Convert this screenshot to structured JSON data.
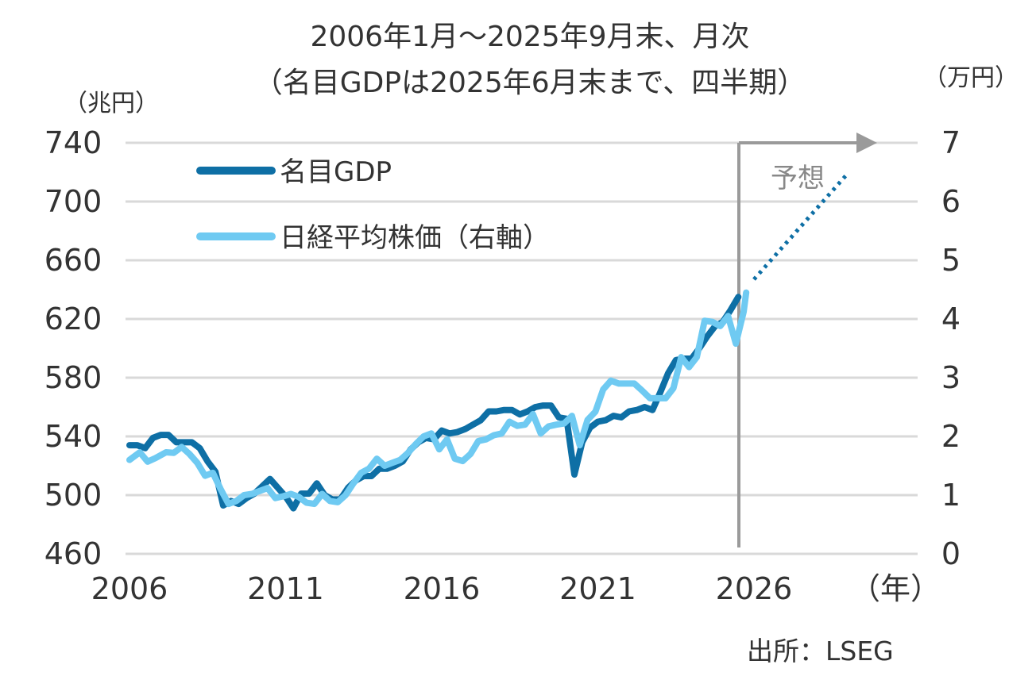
{
  "chart_data": {
    "type": "line",
    "title": "2006年1月～2025年9月末、月次",
    "subtitle": "（名目GDPは2025年6月末まで、四半期）",
    "y_left_label": "（兆円）",
    "y_right_label": "（万円）",
    "x_unit_label": "（年）",
    "x_ticks": [
      "2006",
      "2011",
      "2016",
      "2021",
      "2026"
    ],
    "x_range": [
      2006,
      2030
    ],
    "y_left_ticks": [
      "740",
      "700",
      "660",
      "620",
      "580",
      "540",
      "500",
      "460"
    ],
    "y_left_range": [
      460,
      740
    ],
    "y_right_ticks": [
      "7",
      "6",
      "5",
      "4",
      "3",
      "2",
      "1",
      "0"
    ],
    "y_right_range": [
      0,
      7
    ],
    "grid": true,
    "forecast_label": "予想",
    "forecast_start": 2026,
    "source": "出所：LSEG",
    "series": [
      {
        "name": "名目GDP",
        "axis": "left",
        "color": "#0e6fa5",
        "points": [
          [
            2006.0,
            534
          ],
          [
            2006.25,
            534
          ],
          [
            2006.5,
            532
          ],
          [
            2006.75,
            539
          ],
          [
            2007.0,
            541
          ],
          [
            2007.25,
            541
          ],
          [
            2007.5,
            536
          ],
          [
            2007.75,
            536
          ],
          [
            2008.0,
            536
          ],
          [
            2008.25,
            532
          ],
          [
            2008.5,
            523
          ],
          [
            2008.75,
            516
          ],
          [
            2009.0,
            493
          ],
          [
            2009.25,
            496
          ],
          [
            2009.5,
            494
          ],
          [
            2009.75,
            498
          ],
          [
            2010.0,
            501
          ],
          [
            2010.25,
            506
          ],
          [
            2010.5,
            511
          ],
          [
            2010.75,
            505
          ],
          [
            2011.0,
            499
          ],
          [
            2011.25,
            491
          ],
          [
            2011.5,
            501
          ],
          [
            2011.75,
            501
          ],
          [
            2012.0,
            508
          ],
          [
            2012.25,
            500
          ],
          [
            2012.5,
            497
          ],
          [
            2012.75,
            497
          ],
          [
            2013.0,
            505
          ],
          [
            2013.25,
            510
          ],
          [
            2013.5,
            513
          ],
          [
            2013.75,
            513
          ],
          [
            2014.0,
            518
          ],
          [
            2014.25,
            518
          ],
          [
            2014.5,
            520
          ],
          [
            2014.75,
            523
          ],
          [
            2015.0,
            531
          ],
          [
            2015.25,
            536
          ],
          [
            2015.5,
            539
          ],
          [
            2015.75,
            538
          ],
          [
            2016.0,
            544
          ],
          [
            2016.25,
            542
          ],
          [
            2016.5,
            543
          ],
          [
            2016.75,
            545
          ],
          [
            2017.0,
            548
          ],
          [
            2017.25,
            551
          ],
          [
            2017.5,
            557
          ],
          [
            2017.75,
            557
          ],
          [
            2018.0,
            558
          ],
          [
            2018.25,
            558
          ],
          [
            2018.5,
            555
          ],
          [
            2018.75,
            557
          ],
          [
            2019.0,
            560
          ],
          [
            2019.25,
            561
          ],
          [
            2019.5,
            561
          ],
          [
            2019.75,
            553
          ],
          [
            2020.0,
            552
          ],
          [
            2020.25,
            514
          ],
          [
            2020.5,
            536
          ],
          [
            2020.75,
            546
          ],
          [
            2021.0,
            550
          ],
          [
            2021.25,
            551
          ],
          [
            2021.5,
            554
          ],
          [
            2021.75,
            553
          ],
          [
            2022.0,
            557
          ],
          [
            2022.25,
            558
          ],
          [
            2022.5,
            560
          ],
          [
            2022.75,
            558
          ],
          [
            2023.0,
            570
          ],
          [
            2023.25,
            583
          ],
          [
            2023.5,
            592
          ],
          [
            2023.75,
            593
          ],
          [
            2024.0,
            593
          ],
          [
            2024.25,
            600
          ],
          [
            2024.5,
            608
          ],
          [
            2024.75,
            615
          ],
          [
            2025.0,
            618
          ],
          [
            2025.25,
            626
          ],
          [
            2025.5,
            635
          ]
        ]
      },
      {
        "name": "日経平均株価（右軸）",
        "axis": "right",
        "color": "#6fcaf2",
        "points": [
          [
            2006.0,
            1.6
          ],
          [
            2006.33,
            1.73
          ],
          [
            2006.58,
            1.57
          ],
          [
            2006.83,
            1.63
          ],
          [
            2007.17,
            1.73
          ],
          [
            2007.42,
            1.72
          ],
          [
            2007.67,
            1.82
          ],
          [
            2007.92,
            1.7
          ],
          [
            2008.17,
            1.55
          ],
          [
            2008.42,
            1.33
          ],
          [
            2008.67,
            1.38
          ],
          [
            2008.92,
            1.1
          ],
          [
            2009.17,
            0.85
          ],
          [
            2009.42,
            0.9
          ],
          [
            2009.67,
            1.0
          ],
          [
            2009.92,
            1.02
          ],
          [
            2010.17,
            1.07
          ],
          [
            2010.42,
            1.12
          ],
          [
            2010.67,
            0.95
          ],
          [
            2010.92,
            0.98
          ],
          [
            2011.17,
            1.02
          ],
          [
            2011.42,
            0.97
          ],
          [
            2011.67,
            0.87
          ],
          [
            2011.92,
            0.85
          ],
          [
            2012.17,
            1.02
          ],
          [
            2012.42,
            0.9
          ],
          [
            2012.67,
            0.88
          ],
          [
            2012.92,
            1.0
          ],
          [
            2013.17,
            1.2
          ],
          [
            2013.42,
            1.38
          ],
          [
            2013.67,
            1.45
          ],
          [
            2013.92,
            1.62
          ],
          [
            2014.17,
            1.5
          ],
          [
            2014.42,
            1.55
          ],
          [
            2014.67,
            1.6
          ],
          [
            2014.92,
            1.72
          ],
          [
            2015.17,
            1.87
          ],
          [
            2015.42,
            2.0
          ],
          [
            2015.67,
            2.05
          ],
          [
            2015.92,
            1.78
          ],
          [
            2016.17,
            1.95
          ],
          [
            2016.42,
            1.62
          ],
          [
            2016.67,
            1.58
          ],
          [
            2016.92,
            1.7
          ],
          [
            2017.17,
            1.92
          ],
          [
            2017.42,
            1.95
          ],
          [
            2017.67,
            2.02
          ],
          [
            2017.92,
            2.05
          ],
          [
            2018.17,
            2.25
          ],
          [
            2018.42,
            2.18
          ],
          [
            2018.67,
            2.2
          ],
          [
            2018.92,
            2.38
          ],
          [
            2019.17,
            2.05
          ],
          [
            2019.42,
            2.17
          ],
          [
            2019.67,
            2.2
          ],
          [
            2019.92,
            2.22
          ],
          [
            2020.17,
            2.35
          ],
          [
            2020.42,
            1.85
          ],
          [
            2020.67,
            2.28
          ],
          [
            2020.92,
            2.42
          ],
          [
            2021.17,
            2.8
          ],
          [
            2021.42,
            2.95
          ],
          [
            2021.67,
            2.9
          ],
          [
            2021.92,
            2.9
          ],
          [
            2022.17,
            2.9
          ],
          [
            2022.42,
            2.78
          ],
          [
            2022.67,
            2.65
          ],
          [
            2022.92,
            2.65
          ],
          [
            2023.17,
            2.65
          ],
          [
            2023.42,
            2.82
          ],
          [
            2023.67,
            3.35
          ],
          [
            2023.92,
            3.18
          ],
          [
            2024.17,
            3.35
          ],
          [
            2024.42,
            3.97
          ],
          [
            2024.67,
            3.95
          ],
          [
            2024.92,
            3.88
          ],
          [
            2025.17,
            4.05
          ],
          [
            2025.42,
            3.58
          ],
          [
            2025.67,
            4.12
          ],
          [
            2025.75,
            4.45
          ]
        ]
      },
      {
        "name": "予想",
        "axis": "left",
        "color": "#0e6fa5",
        "style": "dotted",
        "points": [
          [
            2026.0,
            647
          ],
          [
            2029.0,
            719
          ]
        ]
      }
    ]
  }
}
